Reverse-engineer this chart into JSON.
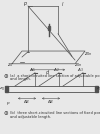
{
  "bg_color": "#e8e8e8",
  "line_color": "#505050",
  "text_color": "#303030",
  "fig_width": 1.0,
  "fig_height": 1.34,
  "label_a": "(a)  a short-circuited line section of adjustable position",
  "label_a2": "and length.",
  "label_b": "(b)  three short-circuited line sections of fixed position",
  "label_b2": "and adjustable length."
}
